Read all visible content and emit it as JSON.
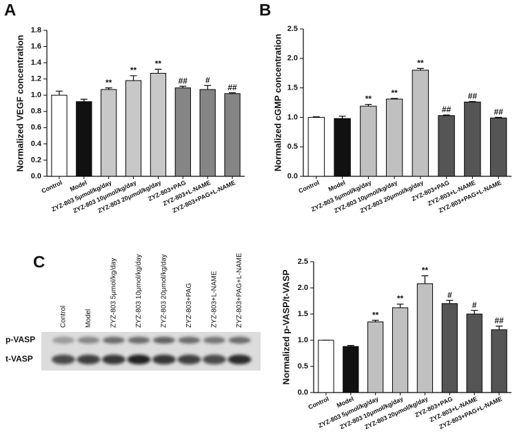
{
  "chart_data": [
    {
      "type": "bar",
      "panel_label": "A",
      "y_label": "Normalized VEGF concentration",
      "categories": [
        "Control",
        "Model",
        "ZYZ-803 5μmol/kg/day",
        "ZYZ-803 10μmol/kg/day",
        "ZYZ-803 20μmol/kg/day",
        "ZYZ-803+PAG",
        "ZYZ-803+L-NAME",
        "ZYZ-803+PAG+L-NAME"
      ],
      "values": [
        1.0,
        0.92,
        1.07,
        1.18,
        1.27,
        1.09,
        1.07,
        1.02
      ],
      "errors": [
        0.05,
        0.03,
        0.02,
        0.06,
        0.05,
        0.02,
        0.05,
        0.01
      ],
      "annotations": [
        null,
        null,
        "**",
        "**",
        "**",
        "##",
        "#",
        "##"
      ],
      "colors": [
        "#ffffff",
        "#111111",
        "#c8c8c8",
        "#c8c8c8",
        "#c8c8c8",
        "#858585",
        "#858585",
        "#858585"
      ],
      "ylim": [
        0,
        1.8
      ],
      "yticks": [
        {
          "value": 0,
          "label": "0.0"
        },
        0.2,
        0.4,
        0.6,
        0.8,
        {
          "value": 1,
          "label": "1.0"
        },
        1.2,
        1.4,
        1.6,
        1.8
      ]
    },
    {
      "type": "bar",
      "panel_label": "B",
      "y_label": "Normalized cGMP concentration",
      "categories": [
        "Control",
        "Model",
        "ZYZ-803 5μmol/kg/day",
        "ZYZ-803 10μmol/kg/day",
        "ZYZ-803 20μmol/kg/day",
        "ZYZ-803+PAG",
        "ZYZ-803+L-NAME",
        "ZYZ-803+PAG+L-NAME"
      ],
      "values": [
        1.0,
        0.98,
        1.19,
        1.31,
        1.8,
        1.03,
        1.26,
        0.99
      ],
      "errors": [
        0.01,
        0.04,
        0.03,
        0.01,
        0.03,
        0.01,
        0.01,
        0.01
      ],
      "annotations": [
        null,
        null,
        "**",
        "**",
        "**",
        "##",
        "##",
        "##"
      ],
      "colors": [
        "#ffffff",
        "#111111",
        "#c0c0c0",
        "#c0c0c0",
        "#c0c0c0",
        "#555555",
        "#555555",
        "#555555"
      ],
      "ylim": [
        0,
        2.5
      ],
      "yticks": [
        {
          "value": 0,
          "label": "0.0"
        },
        0.5,
        {
          "value": 1,
          "label": "1.0"
        },
        1.5,
        {
          "value": 2,
          "label": "2.0"
        },
        2.5
      ]
    },
    {
      "type": "bar",
      "y_label": "Normalized p-VASP/t-VASP",
      "categories": [
        "Control",
        "Model",
        "ZYZ-803 5μmol/kg/day",
        "ZYZ-803 10μmol/kg/day",
        "ZYZ-803 20μmol/kg/day",
        "ZYZ-803+PAG",
        "ZYZ-803+L-NAME",
        "ZYZ-803+PAG+L-NAME"
      ],
      "values": [
        1.0,
        0.88,
        1.35,
        1.62,
        2.08,
        1.7,
        1.5,
        1.2
      ],
      "errors": [
        0,
        0.02,
        0.03,
        0.07,
        0.15,
        0.06,
        0.07,
        0.07
      ],
      "annotations": [
        null,
        null,
        "**",
        "**",
        "**",
        "#",
        "#",
        "##"
      ],
      "colors": [
        "#ffffff",
        "#111111",
        "#c0c0c0",
        "#c0c0c0",
        "#c0c0c0",
        "#555555",
        "#555555",
        "#555555"
      ],
      "ylim": [
        0,
        2.5
      ],
      "yticks": [
        {
          "value": 0,
          "label": "0.0"
        },
        0.5,
        {
          "value": 1,
          "label": "1.0"
        },
        1.5,
        {
          "value": 2,
          "label": "2.0"
        },
        2.5
      ]
    }
  ],
  "blot": {
    "panel_label": "C",
    "lanes": [
      "Control",
      "Model",
      "ZYZ-803 5μmol/kg/day",
      "ZYZ-803 10μmol/kg/day",
      "ZYZ-803 20μmol/kg/day",
      "ZYZ-803+PAG",
      "ZYZ-803+L-NAME",
      "ZYZ-803+PAG+L-NAME"
    ],
    "rows": [
      "p-VASP",
      "t-VASP"
    ]
  }
}
